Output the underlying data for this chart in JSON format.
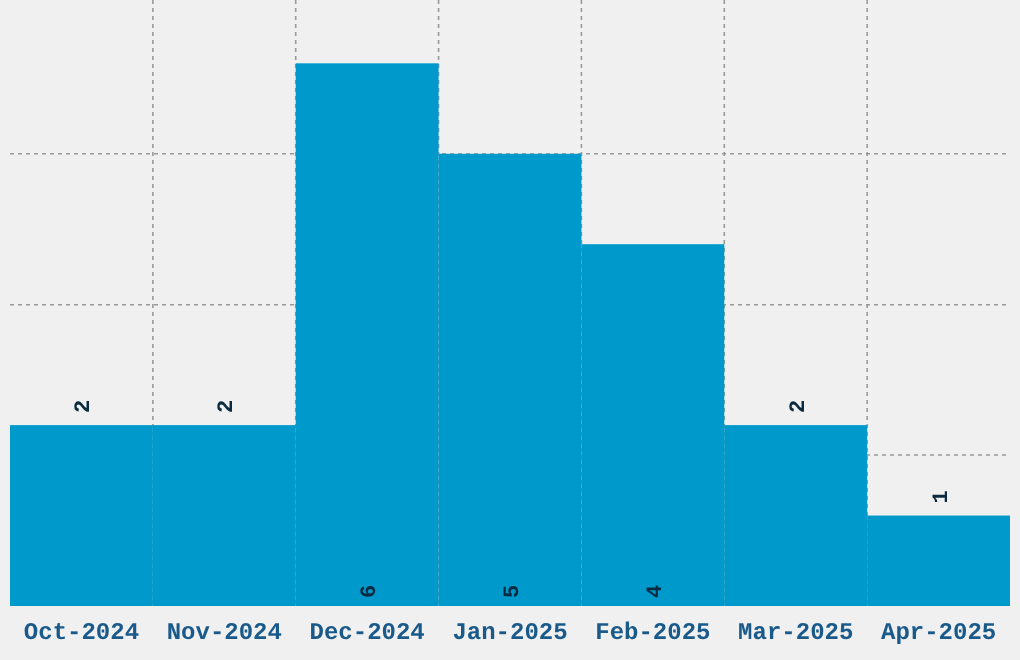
{
  "chart_data": {
    "type": "bar",
    "categories": [
      "Oct-2024",
      "Nov-2024",
      "Dec-2024",
      "Jan-2025",
      "Feb-2025",
      "Mar-2025",
      "Apr-2025"
    ],
    "values": [
      2,
      2,
      6,
      5,
      4,
      2,
      1
    ],
    "color": "#0099cc",
    "ylim": [
      0,
      6.7
    ],
    "yticks": [
      {
        "value": 1.67,
        "label": null
      },
      {
        "value": 3.33,
        "label": null
      },
      {
        "value": 5,
        "label": null
      }
    ],
    "tick_labels": "x",
    "grid": true,
    "data_labels": true
  }
}
